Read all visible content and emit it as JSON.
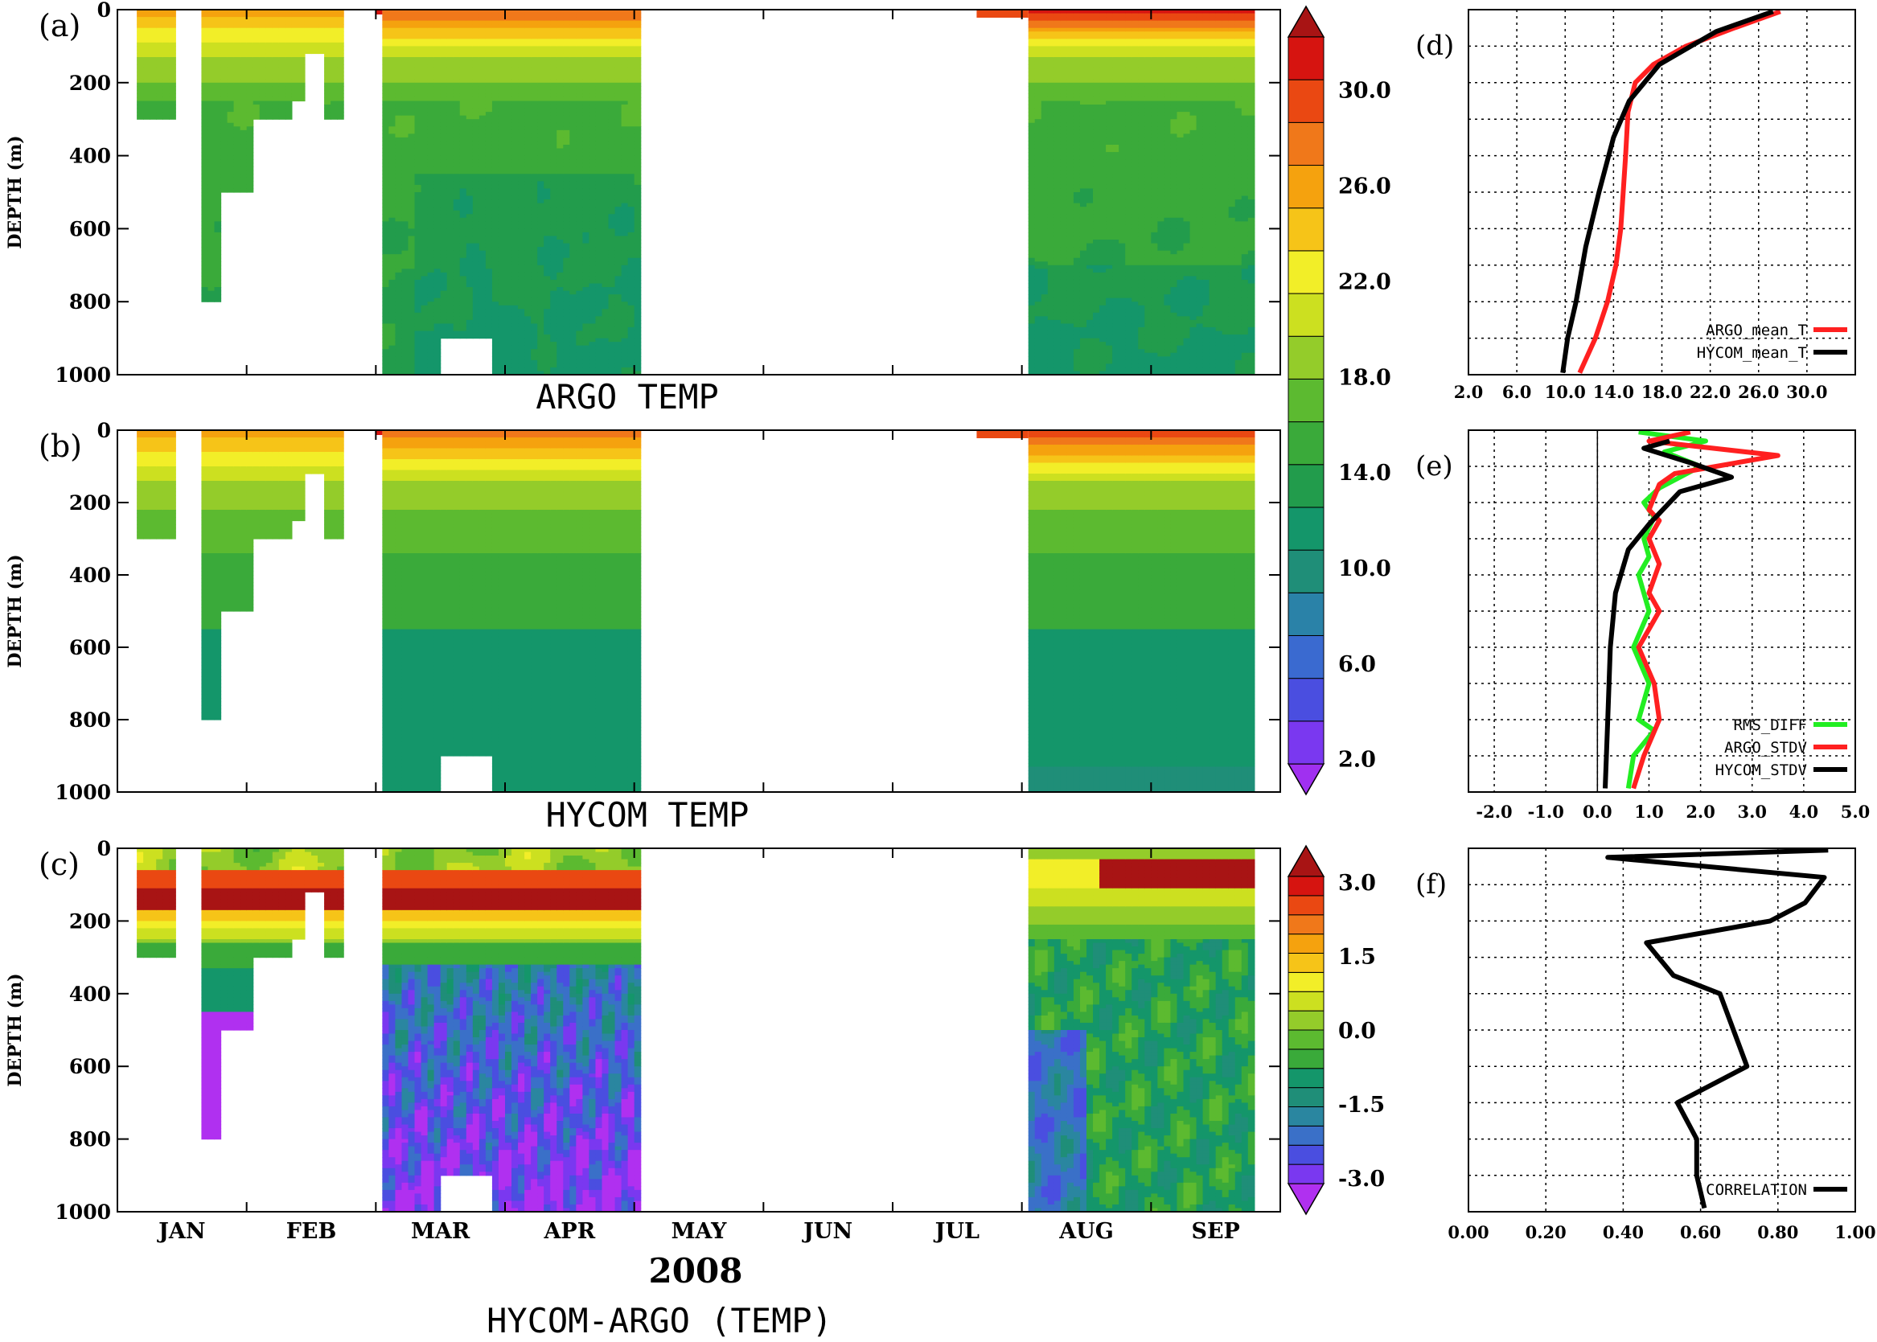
{
  "chart_data": [
    {
      "id": "a",
      "type": "heatmap",
      "panel_label": "(a)",
      "title": "ARGO TEMP",
      "ylabel": "DEPTH (m)",
      "ylim": [
        1000,
        0
      ],
      "yticks": [
        "0",
        "200",
        "400",
        "600",
        "800",
        "1000"
      ],
      "xlim_months": [
        0,
        9
      ]
    },
    {
      "id": "b",
      "type": "heatmap",
      "panel_label": "(b)",
      "title": "HYCOM TEMP",
      "ylabel": "DEPTH (m)",
      "ylim": [
        1000,
        0
      ],
      "yticks": [
        "0",
        "200",
        "400",
        "600",
        "800",
        "1000"
      ],
      "xlim_months": [
        0,
        9
      ]
    },
    {
      "id": "c",
      "type": "heatmap",
      "panel_label": "(c)",
      "title": "HYCOM-ARGO (TEMP)",
      "year": "2008",
      "ylabel": "DEPTH (m)",
      "ylim": [
        1000,
        0
      ],
      "yticks": [
        "0",
        "200",
        "400",
        "600",
        "800",
        "1000"
      ],
      "xticks": [
        "JAN",
        "FEB",
        "MAR",
        "APR",
        "MAY",
        "JUN",
        "JUL",
        "AUG",
        "SEP"
      ]
    },
    {
      "id": "temp_colorbar",
      "type": "colorbar",
      "range": [
        0,
        34
      ],
      "labels": [
        "2.0",
        "6.0",
        "10.0",
        "14.0",
        "18.0",
        "22.0",
        "26.0",
        "30.0"
      ],
      "colors": [
        "#a030f0",
        "#7a38f0",
        "#4a4ee0",
        "#3a6ad0",
        "#2a82a8",
        "#1f8e78",
        "#14966a",
        "#229c4c",
        "#3aaa3a",
        "#5cba30",
        "#94cc2a",
        "#cce020",
        "#f2ee28",
        "#f6c418",
        "#f5a20e",
        "#f0781a",
        "#ea4812",
        "#d61410",
        "#a81414"
      ]
    },
    {
      "id": "diff_colorbar",
      "type": "colorbar",
      "range": [
        -3.5,
        3.5
      ],
      "labels": [
        "-3.0",
        "-1.5",
        "0.0",
        "1.5",
        "3.0"
      ],
      "colors": [
        "#b030f0",
        "#7a38f0",
        "#4a4ee0",
        "#3a70c8",
        "#2a86a0",
        "#1f8e78",
        "#14966a",
        "#3aaa3a",
        "#5cba30",
        "#94cc2a",
        "#cce020",
        "#f2ee28",
        "#f6c418",
        "#f5a20e",
        "#f0781a",
        "#ea4812",
        "#d61410",
        "#a81414"
      ]
    },
    {
      "id": "d",
      "type": "line",
      "panel_label": "(d)",
      "xlim": [
        2,
        34
      ],
      "xticks": [
        2,
        6,
        10,
        14,
        18,
        22,
        26,
        30
      ],
      "xtick_labels": [
        "2.0",
        "6.0",
        "10.0",
        "14.0",
        "18.0",
        "22.0",
        "26.0",
        "30.0"
      ],
      "ylim": [
        1000,
        0
      ],
      "series": [
        {
          "name": "ARGO_mean_T",
          "color": "#ff2020",
          "x": [
            27.8,
            24,
            20,
            17.3,
            15.8,
            15.2,
            15.0,
            14.8,
            14.6,
            14.2,
            13.5,
            12.5,
            11.2
          ],
          "y": [
            5,
            50,
            100,
            150,
            200,
            280,
            400,
            500,
            600,
            700,
            800,
            900,
            995
          ]
        },
        {
          "name": "HYCOM_mean_T",
          "color": "#000000",
          "x": [
            27.2,
            22.5,
            17.8,
            15.3,
            14.0,
            12.8,
            11.7,
            10.9,
            10.2,
            9.8
          ],
          "y": [
            5,
            60,
            150,
            250,
            350,
            500,
            650,
            800,
            900,
            995
          ]
        }
      ],
      "legend": [
        "ARGO_mean_T",
        "HYCOM_mean_T"
      ]
    },
    {
      "id": "e",
      "type": "line",
      "panel_label": "(e)",
      "xlim": [
        -2.5,
        5
      ],
      "xticks": [
        -2,
        -1,
        0,
        1,
        2,
        3,
        4,
        5
      ],
      "xtick_labels": [
        "-2.0",
        "-1.0",
        "0.0",
        "1.0",
        "2.0",
        "3.0",
        "4.0",
        "5.0"
      ],
      "ylim": [
        1000,
        0
      ],
      "series": [
        {
          "name": "RMS_DIFF",
          "color": "#22ee22",
          "x": [
            0.8,
            2.1,
            1.3,
            2.0,
            1.2,
            0.9,
            1.1,
            0.9,
            1.0,
            0.8,
            1.0,
            0.7,
            1.0,
            0.8,
            1.1,
            0.7,
            0.6
          ],
          "y": [
            5,
            30,
            60,
            100,
            160,
            200,
            240,
            300,
            350,
            400,
            500,
            600,
            700,
            800,
            830,
            900,
            990
          ]
        },
        {
          "name": "ARGO_STDV",
          "color": "#ff2020",
          "x": [
            1.8,
            1.0,
            3.5,
            1.5,
            1.2,
            1.0,
            1.2,
            1.0,
            1.2,
            1.0,
            1.2,
            0.8,
            1.1,
            1.2,
            0.9,
            0.7
          ],
          "y": [
            5,
            30,
            70,
            120,
            150,
            220,
            250,
            300,
            370,
            450,
            500,
            600,
            700,
            800,
            900,
            990
          ]
        },
        {
          "name": "HYCOM_STDV",
          "color": "#000000",
          "x": [
            1.4,
            0.9,
            1.8,
            2.6,
            1.6,
            1.0,
            0.6,
            0.35,
            0.25,
            0.2,
            0.15
          ],
          "y": [
            30,
            50,
            90,
            130,
            170,
            260,
            330,
            450,
            600,
            800,
            990
          ]
        }
      ],
      "legend": [
        "RMS_DIFF",
        "ARGO_STDV",
        "HYCOM_STDV"
      ]
    },
    {
      "id": "f",
      "type": "line",
      "panel_label": "(f)",
      "xlim": [
        0,
        1.0
      ],
      "xticks": [
        0,
        0.2,
        0.4,
        0.6,
        0.8,
        1.0
      ],
      "xtick_labels": [
        "0.00",
        "0.20",
        "0.40",
        "0.60",
        "0.80",
        "1.00"
      ],
      "ylim": [
        1000,
        0
      ],
      "series": [
        {
          "name": "CORRELATION",
          "color": "#000000",
          "x": [
            0.93,
            0.36,
            0.92,
            0.87,
            0.78,
            0.46,
            0.53,
            0.65,
            0.72,
            0.54,
            0.59,
            0.59,
            0.61
          ],
          "y": [
            5,
            25,
            80,
            150,
            200,
            260,
            350,
            400,
            600,
            700,
            800,
            900,
            990
          ]
        }
      ],
      "legend": [
        "CORRELATION"
      ]
    }
  ]
}
